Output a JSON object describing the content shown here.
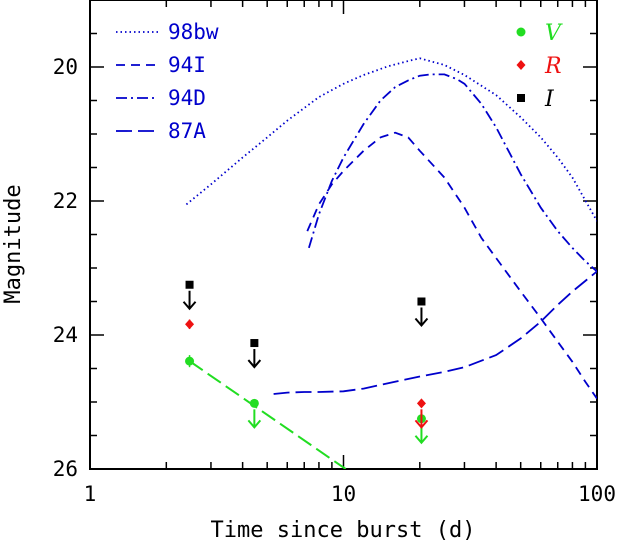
{
  "chart_data": {
    "type": "line",
    "xlabel": "Time since burst (d)",
    "ylabel": "Magnitude",
    "xscale": "log",
    "xlim": [
      1,
      100
    ],
    "ylim": [
      26,
      19
    ],
    "y_inverted": true,
    "x_ticks": [
      1,
      10,
      100
    ],
    "x_tick_labels": [
      "1",
      "10",
      "100"
    ],
    "y_ticks": [
      20,
      22,
      24,
      26
    ],
    "y_tick_labels": [
      "20",
      "22",
      "24",
      "26"
    ],
    "grid": false,
    "legend_position": "top-left",
    "series": [
      {
        "name": "98bw",
        "style": "dotted",
        "color": "#0000cc",
        "x": [
          2.4,
          3,
          4,
          5,
          6,
          8,
          10,
          12,
          15,
          18,
          20,
          25,
          30,
          40,
          50,
          60,
          70,
          80,
          100
        ],
        "y": [
          22.05,
          21.75,
          21.35,
          21.05,
          20.8,
          20.45,
          20.25,
          20.12,
          19.99,
          19.91,
          19.87,
          19.97,
          20.12,
          20.42,
          20.75,
          21.05,
          21.35,
          21.65,
          22.3
        ]
      },
      {
        "name": "94I",
        "style": "dashed",
        "color": "#0000cc",
        "x": [
          7.2,
          8,
          9,
          10,
          12,
          14,
          16,
          18,
          20,
          25,
          30,
          35,
          40,
          50,
          60,
          70,
          80,
          90,
          100
        ],
        "y": [
          22.45,
          22.05,
          21.75,
          21.55,
          21.25,
          21.05,
          20.98,
          21.05,
          21.25,
          21.65,
          22.1,
          22.55,
          22.85,
          23.35,
          23.75,
          24.1,
          24.4,
          24.7,
          24.95
        ]
      },
      {
        "name": "94D",
        "style": "dashdot",
        "color": "#0000cc",
        "x": [
          7.3,
          8,
          9,
          10,
          12,
          14,
          16,
          18,
          20,
          22,
          25,
          28,
          30,
          35,
          40,
          50,
          60,
          70,
          80,
          90,
          100
        ],
        "y": [
          22.7,
          22.2,
          21.7,
          21.35,
          20.85,
          20.5,
          20.3,
          20.2,
          20.13,
          20.11,
          20.11,
          20.18,
          20.25,
          20.55,
          20.9,
          21.6,
          22.1,
          22.45,
          22.7,
          22.9,
          23.05
        ]
      },
      {
        "name": "87A",
        "style": "longdash",
        "color": "#0000cc",
        "x": [
          5.3,
          6,
          7,
          8,
          10,
          12,
          15,
          20,
          25,
          30,
          40,
          50,
          60,
          70,
          80,
          100
        ],
        "y": [
          24.88,
          24.86,
          24.85,
          24.85,
          24.84,
          24.8,
          24.72,
          24.62,
          24.55,
          24.48,
          24.3,
          24.05,
          23.8,
          23.55,
          23.35,
          23.05
        ]
      }
    ],
    "observations": [
      {
        "band": "V",
        "color": "#22dd22",
        "marker": "circle",
        "x": 2.47,
        "y": 24.39,
        "error": 0.09,
        "upper_limit": false
      },
      {
        "band": "V",
        "color": "#22dd22",
        "marker": "circle",
        "x": 4.45,
        "y": 25.02,
        "upper_limit": true
      },
      {
        "band": "V",
        "color": "#22dd22",
        "marker": "circle",
        "x": 20.3,
        "y": 25.25,
        "upper_limit": true
      },
      {
        "band": "R",
        "color": "#ee1111",
        "marker": "diamond",
        "x": 2.47,
        "y": 23.84,
        "error": 0.07,
        "upper_limit": false
      },
      {
        "band": "R",
        "color": "#ee1111",
        "marker": "diamond",
        "x": 20.3,
        "y": 25.02,
        "upper_limit": true
      },
      {
        "band": "I",
        "color": "#000000",
        "marker": "square",
        "x": 2.47,
        "y": 23.25,
        "upper_limit": true
      },
      {
        "band": "I",
        "color": "#000000",
        "marker": "square",
        "x": 4.45,
        "y": 24.12,
        "upper_limit": true
      },
      {
        "band": "I",
        "color": "#000000",
        "marker": "square",
        "x": 20.3,
        "y": 23.5,
        "upper_limit": true
      }
    ],
    "fit_line": {
      "color": "#22dd22",
      "style": "longdash",
      "x": [
        2.47,
        10.2
      ],
      "y": [
        24.39,
        26.0
      ]
    },
    "band_legend": [
      {
        "label": "V",
        "color": "#22dd22",
        "marker": "circle"
      },
      {
        "label": "R",
        "color": "#ee1111",
        "marker": "diamond"
      },
      {
        "label": "I",
        "color": "#000000",
        "marker": "square"
      }
    ]
  }
}
